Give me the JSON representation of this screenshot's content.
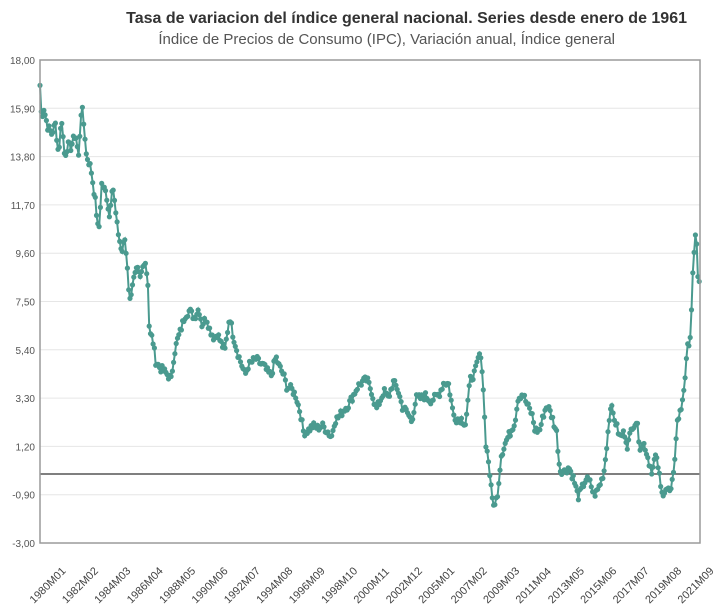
{
  "chart_data": {
    "type": "line",
    "title": "Tasa de variacion del índice general nacional. Series desde enero de 1961",
    "subtitle": "Índice de Precios de Consumo (IPC), Variación anual, Índice general",
    "xlabel": "",
    "ylabel": "",
    "ylim": [
      -3.0,
      18.0
    ],
    "y_ticks": [
      "18,00",
      "15,90",
      "13,80",
      "11,70",
      "9,60",
      "7,50",
      "5,40",
      "3,30",
      "1,20",
      "-0,90",
      "-3,00"
    ],
    "x_tick_labels": [
      "1980M01",
      "1982M02",
      "1984M03",
      "1986M04",
      "1988M05",
      "1990M06",
      "1992M07",
      "1994M08",
      "1996M09",
      "1998M10",
      "2000M11",
      "2002M12",
      "2005M01",
      "2007M02",
      "2009M03",
      "2011M04",
      "2013M05",
      "2015M06",
      "2017M07",
      "2019M08",
      "2021M09"
    ],
    "reference_line": 0,
    "grid": "horizontal",
    "series_color": "#4a9a8f",
    "series": [
      {
        "name": "",
        "keyframes": [
          [
            1980.0,
            16.9
          ],
          [
            1980.1,
            15.5
          ],
          [
            1980.25,
            15.9
          ],
          [
            1980.5,
            15.1
          ],
          [
            1980.75,
            14.8
          ],
          [
            1981.0,
            15.2
          ],
          [
            1981.2,
            13.9
          ],
          [
            1981.4,
            15.5
          ],
          [
            1981.6,
            13.8
          ],
          [
            1981.8,
            14.3
          ],
          [
            1982.0,
            14.2
          ],
          [
            1982.3,
            14.8
          ],
          [
            1982.5,
            13.8
          ],
          [
            1982.7,
            16.1
          ],
          [
            1982.9,
            14.8
          ],
          [
            1983.0,
            13.9
          ],
          [
            1983.3,
            13.3
          ],
          [
            1983.6,
            11.8
          ],
          [
            1983.8,
            10.4
          ],
          [
            1984.0,
            12.6
          ],
          [
            1984.3,
            12.2
          ],
          [
            1984.5,
            11.2
          ],
          [
            1984.7,
            12.7
          ],
          [
            1984.9,
            11.4
          ],
          [
            1985.0,
            10.8
          ],
          [
            1985.3,
            9.6
          ],
          [
            1985.5,
            10.2
          ],
          [
            1985.7,
            8.8
          ],
          [
            1985.8,
            7.4
          ],
          [
            1986.0,
            8.3
          ],
          [
            1986.3,
            8.9
          ],
          [
            1986.5,
            8.5
          ],
          [
            1986.8,
            9.4
          ],
          [
            1987.0,
            8.3
          ],
          [
            1987.1,
            6.1
          ],
          [
            1987.3,
            5.9
          ],
          [
            1987.5,
            4.9
          ],
          [
            1987.8,
            4.6
          ],
          [
            1988.0,
            4.5
          ],
          [
            1988.3,
            4.3
          ],
          [
            1988.5,
            4.1
          ],
          [
            1988.7,
            5.2
          ],
          [
            1988.9,
            5.8
          ],
          [
            1989.1,
            6.2
          ],
          [
            1989.4,
            6.9
          ],
          [
            1989.7,
            7.1
          ],
          [
            1990.0,
            6.8
          ],
          [
            1990.3,
            7.2
          ],
          [
            1990.5,
            6.5
          ],
          [
            1990.8,
            6.8
          ],
          [
            1991.0,
            6.3
          ],
          [
            1991.3,
            5.9
          ],
          [
            1991.5,
            6.1
          ],
          [
            1991.8,
            5.6
          ],
          [
            1992.0,
            5.4
          ],
          [
            1992.3,
            6.9
          ],
          [
            1992.5,
            6.1
          ],
          [
            1992.8,
            5.3
          ],
          [
            1993.0,
            4.9
          ],
          [
            1993.3,
            4.3
          ],
          [
            1993.5,
            4.7
          ],
          [
            1993.8,
            4.9
          ],
          [
            1994.0,
            5.0
          ],
          [
            1994.3,
            4.8
          ],
          [
            1994.5,
            4.7
          ],
          [
            1994.8,
            4.4
          ],
          [
            1995.0,
            4.3
          ],
          [
            1995.3,
            5.1
          ],
          [
            1995.5,
            4.7
          ],
          [
            1995.8,
            4.3
          ],
          [
            1996.0,
            3.8
          ],
          [
            1996.3,
            3.7
          ],
          [
            1996.6,
            3.4
          ],
          [
            1996.9,
            2.6
          ],
          [
            1997.1,
            1.8
          ],
          [
            1997.4,
            1.9
          ],
          [
            1997.7,
            2.1
          ],
          [
            1998.0,
            2.0
          ],
          [
            1998.3,
            2.1
          ],
          [
            1998.6,
            1.9
          ],
          [
            1998.9,
            1.6
          ],
          [
            1999.1,
            2.3
          ],
          [
            1999.4,
            2.5
          ],
          [
            1999.7,
            2.8
          ],
          [
            2000.0,
            3.0
          ],
          [
            2000.3,
            3.4
          ],
          [
            2000.6,
            3.8
          ],
          [
            2000.9,
            4.0
          ],
          [
            2001.2,
            4.1
          ],
          [
            2001.5,
            3.6
          ],
          [
            2001.8,
            2.8
          ],
          [
            2002.0,
            3.1
          ],
          [
            2002.3,
            3.6
          ],
          [
            2002.6,
            3.3
          ],
          [
            2002.9,
            4.0
          ],
          [
            2003.2,
            3.7
          ],
          [
            2003.5,
            2.9
          ],
          [
            2003.8,
            2.7
          ],
          [
            2004.1,
            2.3
          ],
          [
            2004.4,
            3.3
          ],
          [
            2004.7,
            3.3
          ],
          [
            2005.0,
            3.4
          ],
          [
            2005.3,
            3.2
          ],
          [
            2005.6,
            3.3
          ],
          [
            2005.9,
            3.5
          ],
          [
            2006.2,
            4.0
          ],
          [
            2006.5,
            3.9
          ],
          [
            2006.8,
            2.6
          ],
          [
            2007.0,
            2.4
          ],
          [
            2007.3,
            2.4
          ],
          [
            2007.6,
            2.2
          ],
          [
            2007.9,
            4.1
          ],
          [
            2008.2,
            4.4
          ],
          [
            2008.5,
            5.2
          ],
          [
            2008.7,
            4.5
          ],
          [
            2008.9,
            1.4
          ],
          [
            2009.1,
            0.5
          ],
          [
            2009.3,
            -1.0
          ],
          [
            2009.5,
            -1.4
          ],
          [
            2009.7,
            -0.7
          ],
          [
            2009.9,
            0.8
          ],
          [
            2010.2,
            1.4
          ],
          [
            2010.5,
            1.8
          ],
          [
            2010.8,
            2.3
          ],
          [
            2011.0,
            3.3
          ],
          [
            2011.3,
            3.5
          ],
          [
            2011.6,
            3.0
          ],
          [
            2011.9,
            2.6
          ],
          [
            2012.1,
            1.9
          ],
          [
            2012.4,
            1.9
          ],
          [
            2012.7,
            2.7
          ],
          [
            2012.9,
            3.0
          ],
          [
            2013.2,
            2.5
          ],
          [
            2013.5,
            1.8
          ],
          [
            2013.7,
            0.2
          ],
          [
            2014.0,
            0.1
          ],
          [
            2014.3,
            0.3
          ],
          [
            2014.6,
            -0.2
          ],
          [
            2014.9,
            -1.0
          ],
          [
            2015.1,
            -0.7
          ],
          [
            2015.4,
            -0.2
          ],
          [
            2015.7,
            -0.4
          ],
          [
            2015.9,
            -0.9
          ],
          [
            2016.1,
            -0.8
          ],
          [
            2016.4,
            -0.3
          ],
          [
            2016.6,
            0.2
          ],
          [
            2016.8,
            1.6
          ],
          [
            2017.0,
            3.0
          ],
          [
            2017.3,
            2.3
          ],
          [
            2017.6,
            1.6
          ],
          [
            2017.9,
            1.8
          ],
          [
            2018.1,
            1.2
          ],
          [
            2018.4,
            2.1
          ],
          [
            2018.7,
            2.3
          ],
          [
            2018.9,
            1.2
          ],
          [
            2019.2,
            1.3
          ],
          [
            2019.5,
            0.5
          ],
          [
            2019.7,
            0.1
          ],
          [
            2019.9,
            0.8
          ],
          [
            2020.1,
            0.3
          ],
          [
            2020.3,
            -0.9
          ],
          [
            2020.6,
            -0.6
          ],
          [
            2020.9,
            -0.8
          ],
          [
            2021.1,
            0.0
          ],
          [
            2021.3,
            2.2
          ],
          [
            2021.6,
            2.9
          ],
          [
            2021.8,
            4.0
          ],
          [
            2022.0,
            5.5
          ],
          [
            2022.2,
            6.1
          ],
          [
            2022.3,
            8.3
          ],
          [
            2022.45,
            9.8
          ],
          [
            2022.55,
            10.8
          ],
          [
            2022.65,
            8.7
          ],
          [
            2022.75,
            8.3
          ]
        ]
      }
    ]
  }
}
